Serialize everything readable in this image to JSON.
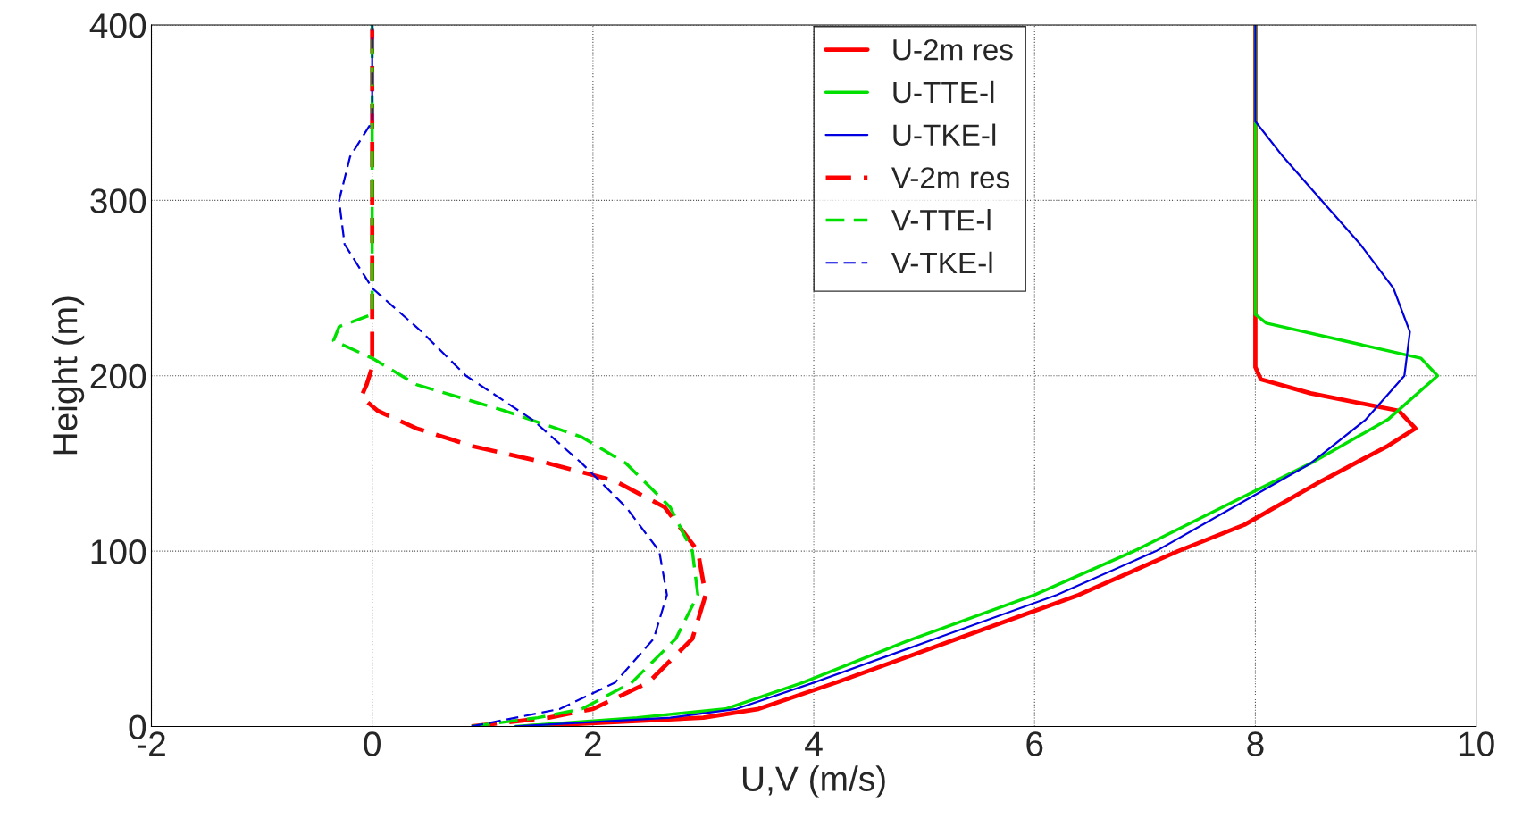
{
  "chart_data": {
    "type": "line",
    "xlabel": "U,V (m/s)",
    "ylabel": "Height (m)",
    "xlim": [
      -2,
      10
    ],
    "ylim": [
      0,
      400
    ],
    "xticks": [
      -2,
      0,
      2,
      4,
      6,
      8,
      10
    ],
    "yticks": [
      0,
      100,
      200,
      300,
      400
    ],
    "grid": true,
    "legend": "top",
    "series": [
      {
        "name": "U-2m res",
        "color": "#ff0000",
        "line_style": "solid",
        "x": [
          1.4,
          3.0,
          3.5,
          4.2,
          5.3,
          6.4,
          7.3,
          7.9,
          8.6,
          9.2,
          9.45,
          9.3,
          8.5,
          8.05,
          8.0,
          8.0
        ],
        "values": [
          0,
          5,
          10,
          25,
          50,
          75,
          100,
          115,
          140,
          160,
          170,
          180,
          190,
          198,
          205,
          400
        ]
      },
      {
        "name": "U-TTE-l",
        "color": "#00e000",
        "line_style": "solid",
        "x": [
          1.3,
          2.4,
          3.2,
          3.9,
          4.9,
          6.0,
          6.9,
          7.7,
          8.5,
          9.2,
          9.65,
          9.5,
          8.8,
          8.1,
          8.0,
          8.0
        ],
        "values": [
          0,
          5,
          10,
          25,
          50,
          75,
          100,
          125,
          150,
          175,
          200,
          210,
          220,
          230,
          235,
          400
        ]
      },
      {
        "name": "U-TKE-l",
        "color": "#0000e0",
        "line_style": "solid",
        "x": [
          1.3,
          2.7,
          3.3,
          4.0,
          5.1,
          6.2,
          7.1,
          7.8,
          8.5,
          9.0,
          9.35,
          9.4,
          9.25,
          8.95,
          8.6,
          8.25,
          8.0,
          8.0
        ],
        "values": [
          0,
          5,
          10,
          25,
          50,
          75,
          100,
          125,
          150,
          175,
          200,
          225,
          250,
          275,
          300,
          325,
          345,
          400
        ]
      },
      {
        "name": "V-2m res",
        "color": "#ff0000",
        "line_style": "dashed",
        "x": [
          0.9,
          1.6,
          2.0,
          2.5,
          2.9,
          3.02,
          2.95,
          2.65,
          2.2,
          1.6,
          0.9,
          0.4,
          0.05,
          -0.1,
          -0.05,
          0.0,
          0.0
        ],
        "values": [
          0,
          5,
          10,
          25,
          50,
          75,
          100,
          125,
          140,
          150,
          160,
          170,
          180,
          188,
          195,
          205,
          400
        ]
      },
      {
        "name": "V-TTE-l",
        "color": "#00e000",
        "line_style": "dashed",
        "x": [
          0.9,
          1.5,
          1.9,
          2.35,
          2.75,
          2.95,
          2.9,
          2.7,
          2.3,
          1.9,
          1.2,
          0.4,
          0.0,
          -0.35,
          -0.3,
          0.0,
          0.0
        ],
        "values": [
          0,
          5,
          10,
          25,
          50,
          75,
          100,
          125,
          150,
          165,
          180,
          195,
          210,
          220,
          228,
          235,
          400
        ]
      },
      {
        "name": "V-TKE-l",
        "color": "#0000e0",
        "line_style": "dashed",
        "x": [
          0.9,
          1.3,
          1.7,
          2.2,
          2.55,
          2.67,
          2.6,
          2.3,
          1.9,
          1.45,
          0.85,
          0.45,
          0.0,
          -0.25,
          -0.3,
          -0.2,
          0.0,
          0.0
        ],
        "values": [
          0,
          5,
          10,
          25,
          50,
          75,
          100,
          125,
          150,
          175,
          200,
          225,
          250,
          275,
          300,
          325,
          345,
          400
        ]
      }
    ]
  }
}
